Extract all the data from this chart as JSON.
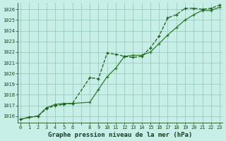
{
  "title": "Graphe pression niveau de la mer (hPa)",
  "background_color": "#c8eee8",
  "grid_color": "#99ccbb",
  "line_color_1": "#1a5c1a",
  "line_color_2": "#2d7a2d",
  "x_all": [
    0,
    1,
    2,
    3,
    4,
    5,
    6,
    8,
    9,
    10,
    11,
    12,
    13,
    14,
    15,
    16,
    17,
    18,
    19,
    20,
    21,
    22,
    23
  ],
  "series1": [
    1015.7,
    1015.9,
    1016.0,
    1016.7,
    1017.0,
    1017.1,
    1017.2,
    1019.6,
    1019.5,
    1021.9,
    1021.8,
    1021.6,
    1021.5,
    1021.6,
    1022.4,
    1023.5,
    1025.2,
    1025.5,
    1026.1,
    1026.1,
    1026.0,
    1026.1,
    1026.4
  ],
  "series2": [
    1015.7,
    1015.9,
    1016.0,
    1016.8,
    1017.1,
    1017.2,
    1017.2,
    1017.3,
    1018.5,
    1019.7,
    1020.5,
    1021.6,
    1021.7,
    1021.7,
    1022.0,
    1022.8,
    1023.6,
    1024.3,
    1025.0,
    1025.5,
    1025.9,
    1025.9,
    1026.2
  ],
  "ylim": [
    1015.4,
    1026.6
  ],
  "yticks": [
    1016,
    1017,
    1018,
    1019,
    1020,
    1021,
    1022,
    1023,
    1024,
    1025,
    1026
  ],
  "xlim": [
    -0.3,
    23.3
  ]
}
